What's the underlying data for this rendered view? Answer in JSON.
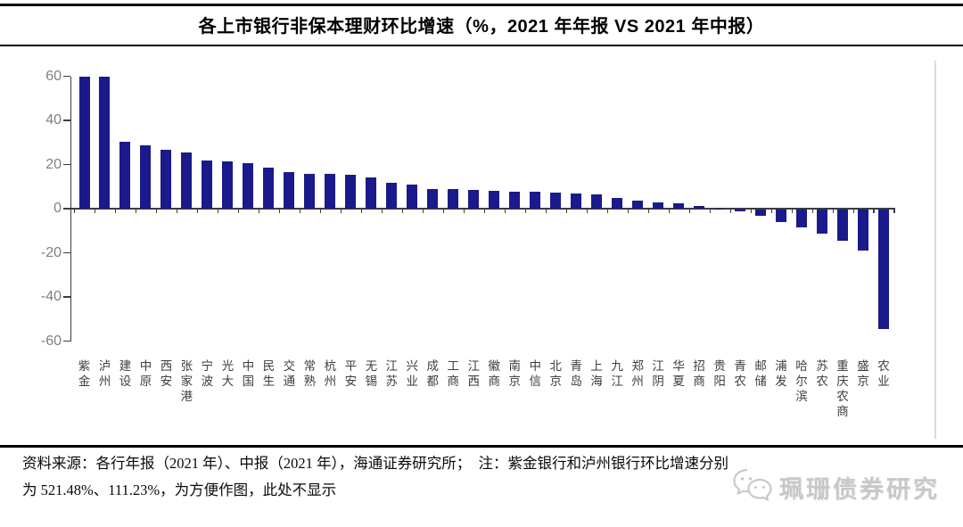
{
  "title": "各上市银行非保本理财环比增速（%，2021 年年报 VS 2021 年中报）",
  "chart_data": {
    "type": "bar",
    "title": "各上市银行非保本理财环比增速（%，2021 年年报 VS 2021 年中报）",
    "categories": [
      "紫金",
      "泸州",
      "建设",
      "中原",
      "西安",
      "张家港",
      "宁波",
      "光大",
      "中国",
      "民生",
      "交通",
      "常熟",
      "杭州",
      "平安",
      "无锡",
      "江苏",
      "兴业",
      "成都",
      "工商",
      "江西",
      "徽商",
      "南京",
      "中信",
      "北京",
      "青岛",
      "上海",
      "九江",
      "郑州",
      "江阴",
      "华夏",
      "招商",
      "贵阳",
      "青农",
      "邮储",
      "浦发",
      "哈尔滨",
      "苏农",
      "重庆农商",
      "盛京",
      "农业"
    ],
    "values": [
      521.48,
      111.23,
      30.3,
      28.6,
      26.8,
      25.5,
      21.8,
      21.4,
      20.5,
      18.7,
      16.5,
      15.8,
      15.6,
      15.3,
      14.2,
      11.7,
      10.8,
      9.0,
      8.7,
      8.6,
      8.1,
      7.8,
      7.5,
      7.3,
      7.0,
      6.6,
      5.0,
      3.6,
      2.9,
      2.5,
      1.2,
      0.2,
      -1.0,
      -2.8,
      -5.8,
      -8.0,
      -11.0,
      -14.0,
      -18.5,
      -54.0
    ],
    "ylim": [
      -60,
      60
    ],
    "yticks": [
      60,
      40,
      20,
      0,
      -20,
      -40,
      -60
    ],
    "display_clip_max": 60,
    "grid": "off",
    "legend": "none",
    "bar_color": "#1a1a8c",
    "axis_color": "#3c3c3c",
    "tick_label_color": "#7f7f7f"
  },
  "footer": {
    "line1": "资料来源：各行年报（2021 年）、中报（2021 年），海通证券研究所；　注：紫金银行和泸州银行环比增速分别",
    "line2": "为 521.48%、111.23%，为方便作图，此处不显示",
    "watermark": "珮珊债券研究"
  }
}
